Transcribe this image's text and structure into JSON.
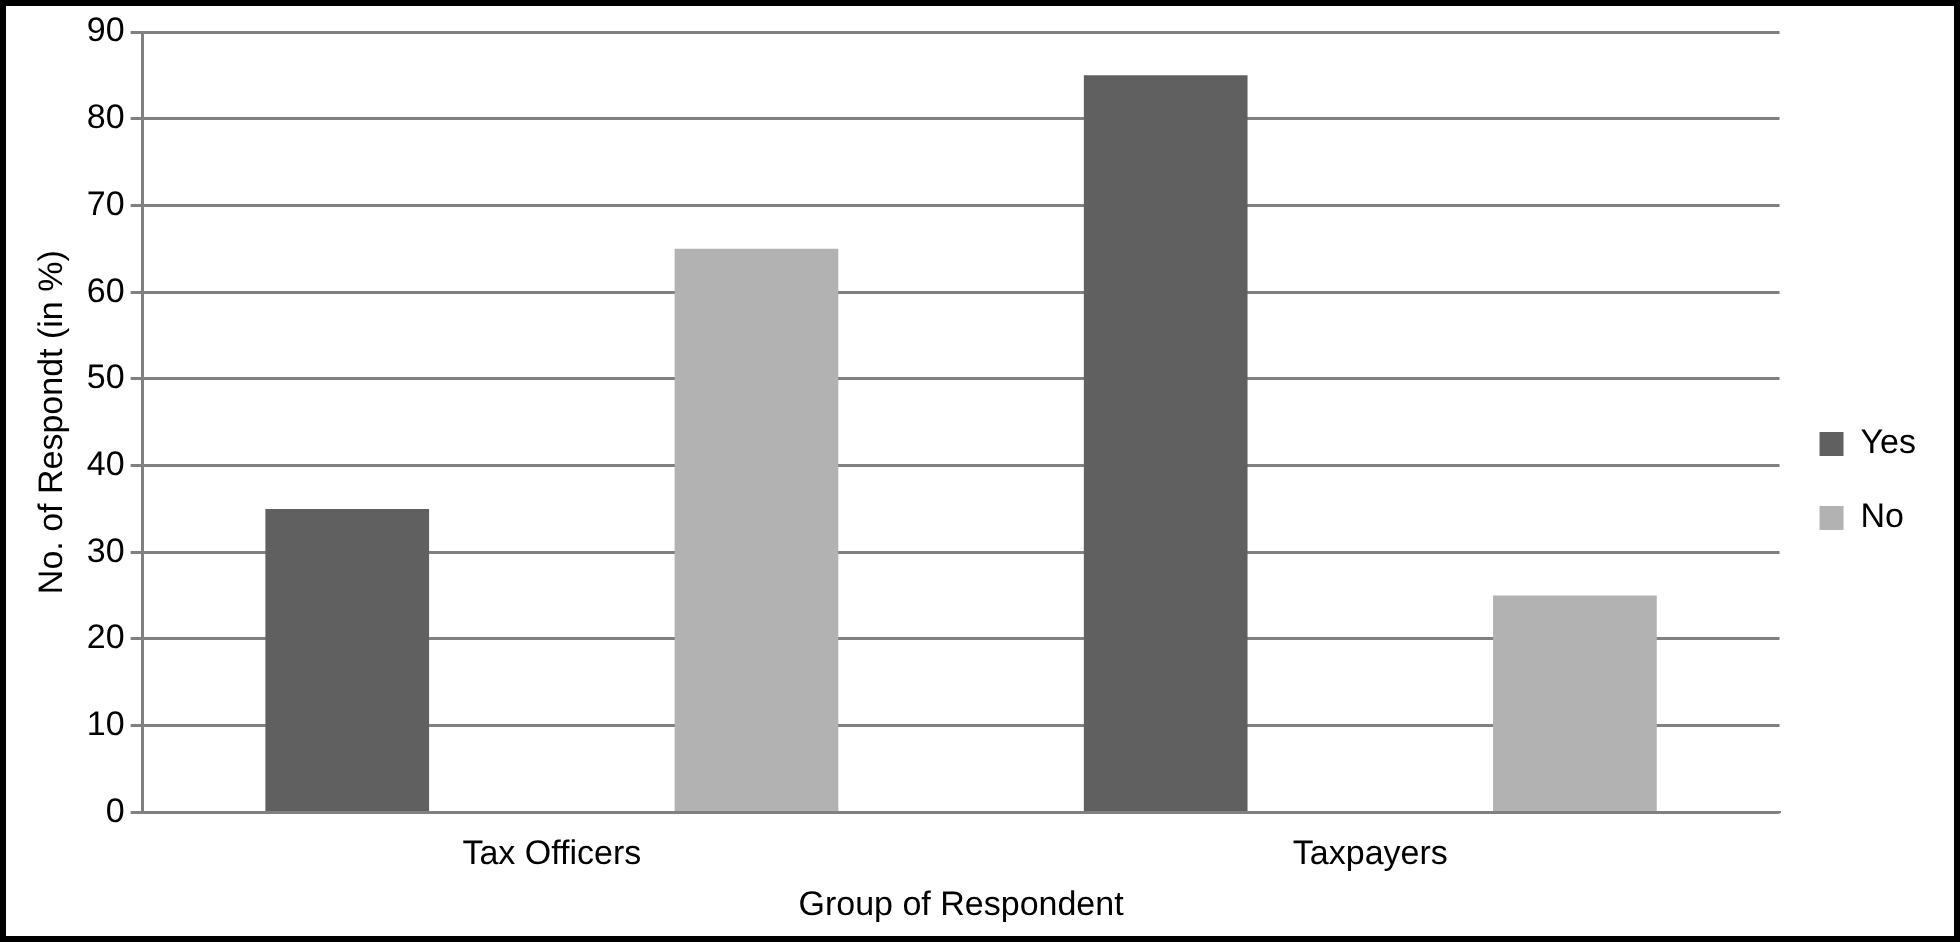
{
  "chart_data": {
    "type": "bar",
    "xlabel": "Group of Respondent",
    "ylabel": "No. of Respondt (in %)",
    "categories": [
      "Tax Officers",
      "Taxpayers"
    ],
    "series": [
      {
        "name": "Yes",
        "color": "#606060",
        "values": [
          35,
          85
        ]
      },
      {
        "name": "No",
        "color": "#b2b2b2",
        "values": [
          65,
          25
        ]
      }
    ],
    "ylim": [
      0,
      90
    ],
    "yticks": [
      0,
      10,
      20,
      30,
      40,
      50,
      60,
      70,
      80,
      90
    ],
    "grid": "y",
    "legend": "right"
  }
}
